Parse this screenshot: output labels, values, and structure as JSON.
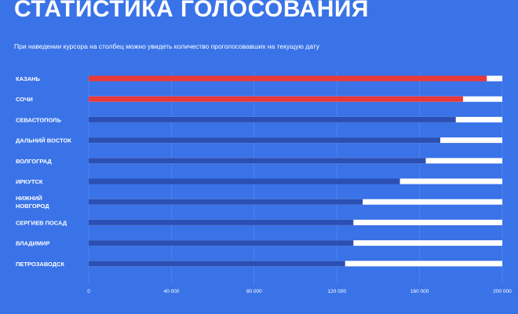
{
  "header": {
    "title": "СТАТИСТИКА ГОЛОСОВАНИЯ",
    "subtitle": "При наведении курсора на столбец можно увидеть количество проголосовавших на текущую дату"
  },
  "colors": {
    "background": "#3a73e8",
    "track": "#ffffff",
    "bar_default": "#2b4fb3",
    "bar_highlight": "#e83a3a"
  },
  "chart_data": {
    "type": "bar",
    "orientation": "horizontal",
    "categories": [
      [
        "КАЗАНЬ"
      ],
      [
        "СОЧИ"
      ],
      [
        "СЕВАСТОПОЛЬ"
      ],
      [
        "ДАЛЬНИЙ ВОСТОК"
      ],
      [
        "ВОЛГОГРАД"
      ],
      [
        "ИРКУТСК"
      ],
      [
        "НИЖНИЙ",
        "НОВГОРОД"
      ],
      [
        "СЕРГИЕВ ПОСАД"
      ],
      [
        "ВЛАДИМИР"
      ],
      [
        "ПЕТРОЗАВОДСК"
      ]
    ],
    "values": [
      192500,
      181000,
      177500,
      170000,
      163000,
      150500,
      132500,
      128000,
      128000,
      124000
    ],
    "highlighted": [
      true,
      true,
      false,
      false,
      false,
      false,
      false,
      false,
      false,
      false
    ],
    "xlim": [
      0,
      200000
    ],
    "ticks": [
      {
        "value": 0,
        "label": "0"
      },
      {
        "value": 40000,
        "label": "40 000"
      },
      {
        "value": 80000,
        "label": "80 000"
      },
      {
        "value": 120000,
        "label": "120 000"
      },
      {
        "value": 160000,
        "label": "160 000"
      },
      {
        "value": 200000,
        "label": "200 000"
      }
    ],
    "grid": "vertical"
  }
}
